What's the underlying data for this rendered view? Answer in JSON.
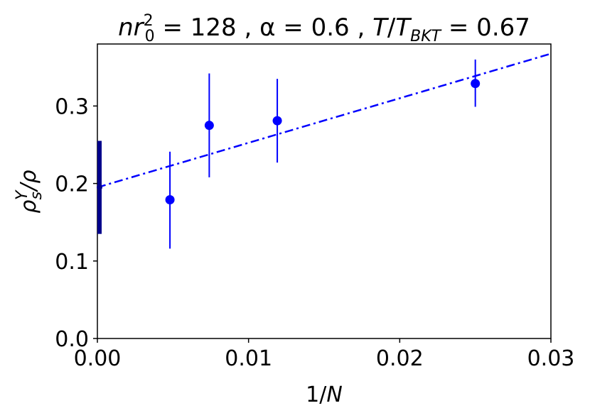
{
  "chart_data": {
    "type": "scatter",
    "title": {
      "prefix": "nr",
      "sup": "2",
      "sub": "0",
      "middle": " = 128 , α = 0.6 , ",
      "ratio_num": "T",
      "slash": "/",
      "ratio_den": "T",
      "ratio_den_sub": "BKT",
      "suffix": " = 0.67"
    },
    "xlabel": {
      "pre": "1/",
      "var": "N"
    },
    "ylabel": {
      "rho": "ρ",
      "sub": "s",
      "sup": "Y",
      "rest": "/ρ"
    },
    "xlim": [
      0.0,
      0.03
    ],
    "ylim": [
      0.0,
      0.38
    ],
    "xticks": [
      {
        "value": 0.0,
        "label": "0.00"
      },
      {
        "value": 0.01,
        "label": "0.01"
      },
      {
        "value": 0.02,
        "label": "0.02"
      },
      {
        "value": 0.03,
        "label": "0.03"
      }
    ],
    "yticks": [
      {
        "value": 0.0,
        "label": "0.0"
      },
      {
        "value": 0.1,
        "label": "0.1"
      },
      {
        "value": 0.2,
        "label": "0.2"
      },
      {
        "value": 0.3,
        "label": "0.3"
      }
    ],
    "series": [
      {
        "kind": "errorbar",
        "color": "#0000ff",
        "points": [
          {
            "x": 0.0048,
            "y": 0.179,
            "err_low": 0.116,
            "err_high": 0.241
          },
          {
            "x": 0.0074,
            "y": 0.275,
            "err_low": 0.208,
            "err_high": 0.342
          },
          {
            "x": 0.0119,
            "y": 0.281,
            "err_low": 0.227,
            "err_high": 0.335
          },
          {
            "x": 0.025,
            "y": 0.329,
            "err_low": 0.299,
            "err_high": 0.36
          }
        ]
      },
      {
        "kind": "fit-line",
        "style": "dash-dot",
        "color": "#0000ff",
        "intercept": 0.195,
        "slope": 5.75
      },
      {
        "kind": "extrapolated-point",
        "color": "#00008b",
        "x": 0.0,
        "y": 0.195,
        "err_low": 0.135,
        "err_high": 0.255
      }
    ],
    "grid": false,
    "legend": "none"
  }
}
